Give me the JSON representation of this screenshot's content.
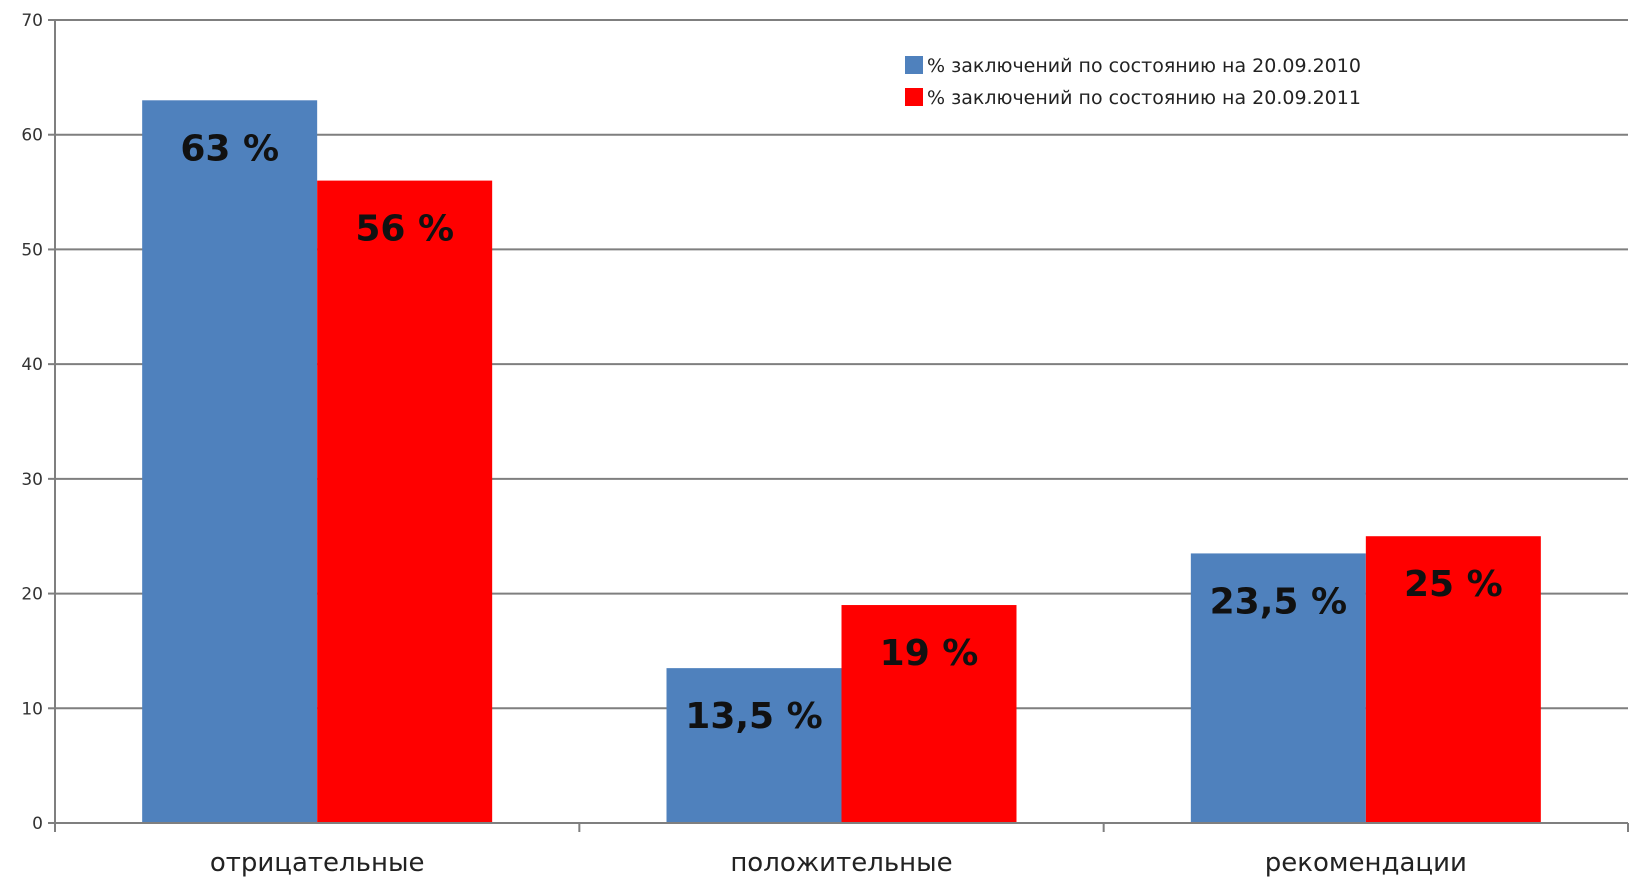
{
  "chart_data": {
    "type": "bar",
    "title": "",
    "xlabel": "",
    "ylabel": "",
    "ylim": [
      0,
      70
    ],
    "yticks": [
      0,
      10,
      20,
      30,
      40,
      50,
      60,
      70
    ],
    "grid": true,
    "legend_position": "top-right",
    "categories": [
      "отрицательные",
      "положительные",
      "рекомендации"
    ],
    "series": [
      {
        "name": "% заключений  по состоянию на 20.09.2010",
        "color": "#4f81bd",
        "values": [
          63,
          13.5,
          23.5
        ],
        "labels": [
          "63 %",
          "13,5 %",
          "23,5 %"
        ]
      },
      {
        "name": "% заключений  по состоянию на 20.09.2011",
        "color": "#ff0000",
        "values": [
          56,
          19,
          25
        ],
        "labels": [
          "56 %",
          "19 %",
          "25 %"
        ]
      }
    ]
  }
}
